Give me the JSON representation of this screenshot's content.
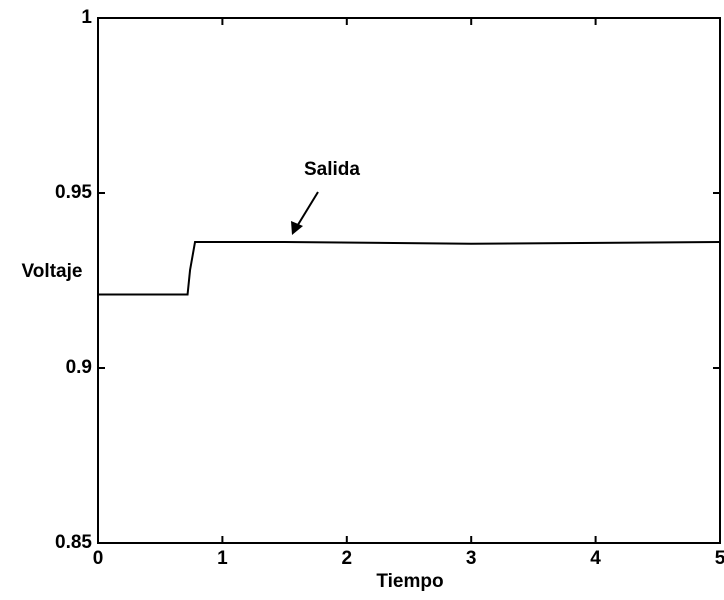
{
  "chart_data": {
    "type": "line",
    "x_label": "Tiempo",
    "y_label": "Voltaje",
    "annotation": "Salida",
    "x": [
      0,
      0.72,
      0.74,
      0.78,
      1.5,
      3,
      5
    ],
    "series": [
      {
        "name": "Salida",
        "color": "#000000",
        "values": [
          0.921,
          0.921,
          0.928,
          0.936,
          0.936,
          0.9355,
          0.936
        ]
      }
    ],
    "xlim": [
      0,
      5
    ],
    "xticks": [
      0,
      1,
      2,
      3,
      4,
      5
    ],
    "ylim": [
      0.85,
      1
    ],
    "yticks": [
      0.85,
      0.9,
      0.95,
      1
    ],
    "grid": false
  }
}
